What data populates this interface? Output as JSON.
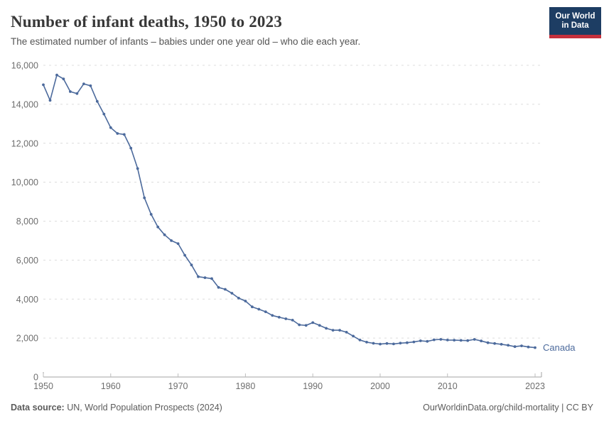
{
  "header": {
    "title": "Number of infant deaths, 1950 to 2023",
    "subtitle": "The estimated number of infants – babies under one year old – who die each year."
  },
  "logo": {
    "line1": "Our World",
    "line2": "in Data",
    "bg_color": "#1d3d63",
    "accent_color": "#c5303c"
  },
  "footer": {
    "source_label": "Data source:",
    "source_text": " UN, World Population Prospects (2024)",
    "rights_text": "OurWorldinData.org/child-mortality | CC BY"
  },
  "chart_data": {
    "type": "line",
    "title": "Number of infant deaths, 1950 to 2023",
    "xlabel": "",
    "ylabel": "",
    "xlim": [
      1950,
      2023
    ],
    "ylim": [
      0,
      16000
    ],
    "grid": "horizontal-dashed",
    "legend_position": "end-of-line-label",
    "x_ticks": [
      1950,
      1960,
      1970,
      1980,
      1990,
      2000,
      2010,
      2023
    ],
    "y_ticks": [
      0,
      2000,
      4000,
      6000,
      8000,
      10000,
      12000,
      14000,
      16000
    ],
    "entity_label": "Canada",
    "line_color": "#4c6a9c",
    "grid_color": "#dcdcdc",
    "axis_color": "#a3a3a3",
    "tick_label_color": "#6e6e6e",
    "series": [
      {
        "name": "Canada",
        "x": [
          1950,
          1951,
          1952,
          1953,
          1954,
          1955,
          1956,
          1957,
          1958,
          1959,
          1960,
          1961,
          1962,
          1963,
          1964,
          1965,
          1966,
          1967,
          1968,
          1969,
          1970,
          1971,
          1972,
          1973,
          1974,
          1975,
          1976,
          1977,
          1978,
          1979,
          1980,
          1981,
          1982,
          1983,
          1984,
          1985,
          1986,
          1987,
          1988,
          1989,
          1990,
          1991,
          1992,
          1993,
          1994,
          1995,
          1996,
          1997,
          1998,
          1999,
          2000,
          2001,
          2002,
          2003,
          2004,
          2005,
          2006,
          2007,
          2008,
          2009,
          2010,
          2011,
          2012,
          2013,
          2014,
          2015,
          2016,
          2017,
          2018,
          2019,
          2020,
          2021,
          2022,
          2023
        ],
        "values": [
          15000,
          14200,
          15500,
          15300,
          14650,
          14550,
          15050,
          14950,
          14150,
          13500,
          12800,
          12500,
          12450,
          11750,
          10700,
          9200,
          8350,
          7700,
          7300,
          7000,
          6850,
          6250,
          5750,
          5150,
          5100,
          5050,
          4600,
          4500,
          4300,
          4050,
          3900,
          3600,
          3480,
          3350,
          3160,
          3070,
          2990,
          2920,
          2680,
          2650,
          2790,
          2650,
          2500,
          2400,
          2400,
          2300,
          2100,
          1900,
          1790,
          1730,
          1690,
          1720,
          1700,
          1740,
          1760,
          1800,
          1860,
          1830,
          1910,
          1930,
          1900,
          1890,
          1880,
          1870,
          1930,
          1850,
          1760,
          1720,
          1680,
          1630,
          1560,
          1600,
          1540,
          1510
        ]
      }
    ]
  }
}
